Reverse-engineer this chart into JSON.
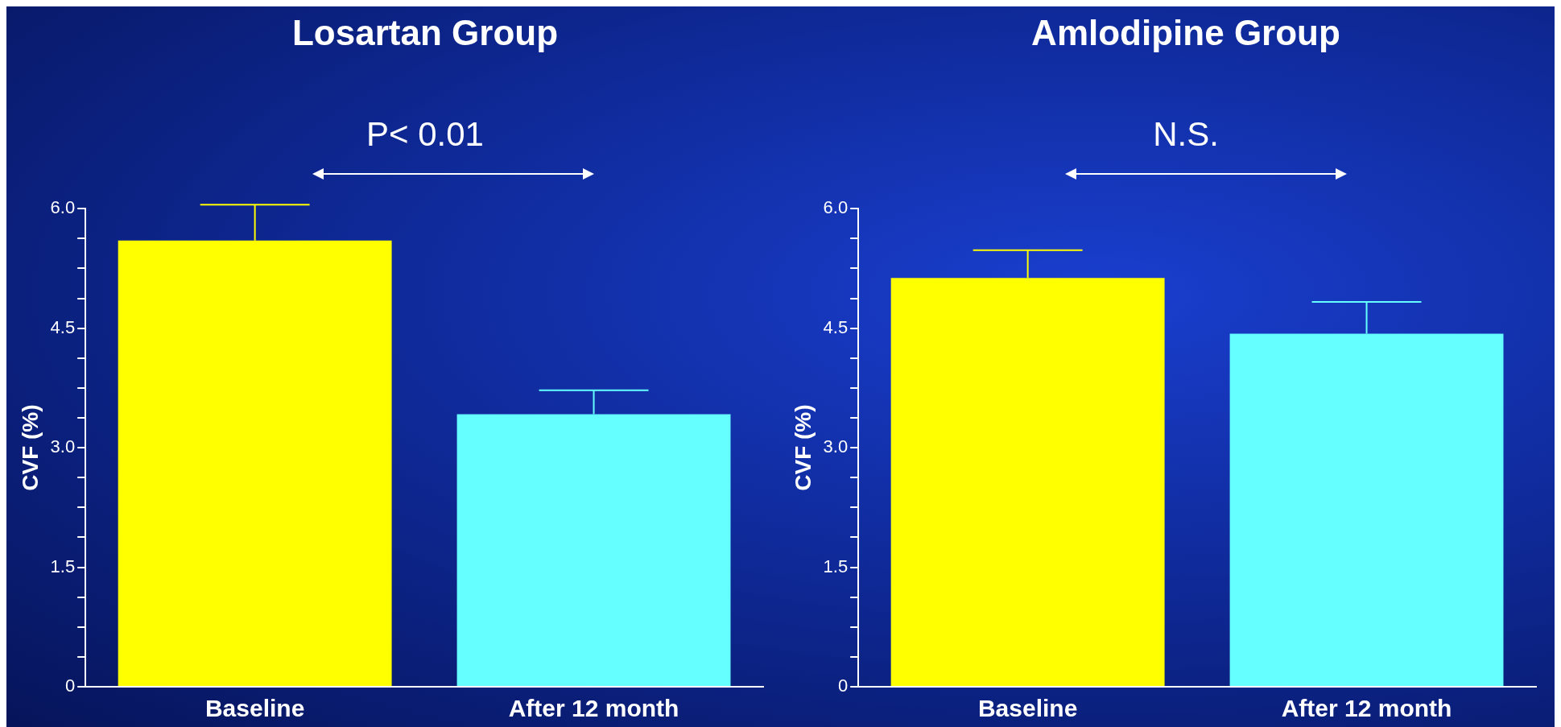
{
  "chart_data": [
    {
      "type": "bar",
      "title": "Losartan Group",
      "ylabel": "CVF (%)",
      "categories": [
        "Baseline",
        "After 12 month"
      ],
      "values": [
        5.6,
        3.42
      ],
      "colors": [
        "#ffff00",
        "#66ffff"
      ],
      "errors": [
        [
          5.6,
          6.05
        ],
        [
          3.42,
          3.72
        ]
      ],
      "ylim": [
        0,
        6
      ],
      "yticks": [
        0,
        {
          "value": 0.375,
          "label": null
        },
        {
          "value": 0.75,
          "label": null
        },
        {
          "value": 1.125,
          "label": null
        },
        1.5,
        {
          "value": 1.875,
          "label": null
        },
        {
          "value": 2.25,
          "label": null
        },
        {
          "value": 2.625,
          "label": null
        },
        {
          "value": 3,
          "label": "3.0"
        },
        {
          "value": 3.375,
          "label": null
        },
        {
          "value": 3.75,
          "label": null
        },
        {
          "value": 4.125,
          "label": null
        },
        4.5,
        {
          "value": 4.875,
          "label": null
        },
        {
          "value": 5.25,
          "label": null
        },
        {
          "value": 5.625,
          "label": null
        },
        {
          "value": 6,
          "label": "6.0"
        }
      ],
      "annotations": [
        "P< 0.01"
      ]
    },
    {
      "type": "bar",
      "title": "Amlodipine Group",
      "ylabel": "CVF (%)",
      "categories": [
        "Baseline",
        "After 12 month"
      ],
      "values": [
        5.13,
        4.43
      ],
      "colors": [
        "#ffff00",
        "#66ffff"
      ],
      "errors": [
        [
          5.13,
          5.48
        ],
        [
          4.43,
          4.83
        ]
      ],
      "ylim": [
        0,
        6
      ],
      "yticks": [
        0,
        {
          "value": 0.375,
          "label": null
        },
        {
          "value": 0.75,
          "label": null
        },
        {
          "value": 1.125,
          "label": null
        },
        1.5,
        {
          "value": 1.875,
          "label": null
        },
        {
          "value": 2.25,
          "label": null
        },
        {
          "value": 2.625,
          "label": null
        },
        {
          "value": 3,
          "label": "3.0"
        },
        {
          "value": 3.375,
          "label": null
        },
        {
          "value": 3.75,
          "label": null
        },
        {
          "value": 4.125,
          "label": null
        },
        4.5,
        {
          "value": 4.875,
          "label": null
        },
        {
          "value": 5.25,
          "label": null
        },
        {
          "value": 5.625,
          "label": null
        },
        {
          "value": 6,
          "label": "6.0"
        }
      ],
      "annotations": [
        "N.S."
      ]
    }
  ]
}
